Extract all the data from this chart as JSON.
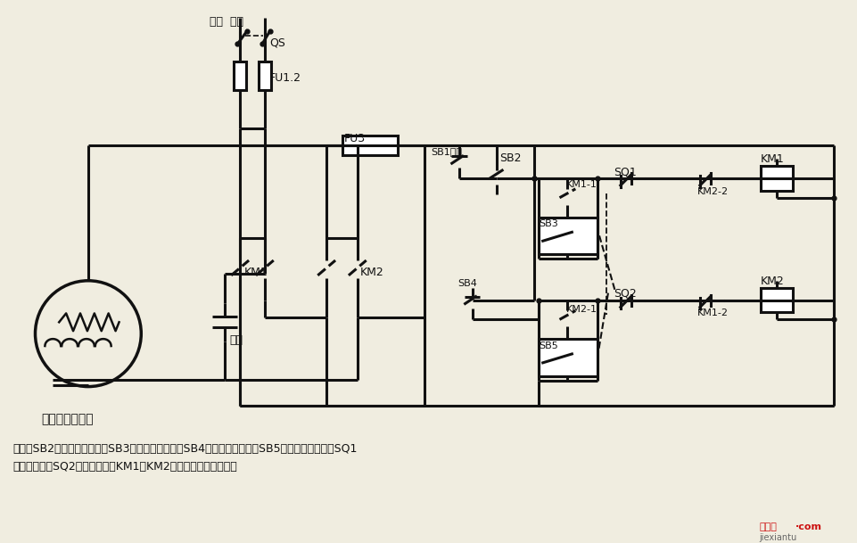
{
  "bg": "#f0ede0",
  "lc": "#111111",
  "lw": 2.2,
  "title": "单相电容电动机",
  "desc1": "说明：SB2为上升启动按钮，SB3为上升点动按钮，SB4为下降启动按钮，SB5为下降点动按钮；SQ1",
  "desc2": "为最高限位，SQ2为最低限位。KM1、KM2可用中间继电器代替。",
  "wm1": "接线图",
  "wm2": "·com",
  "wm3": "jiexiantu"
}
